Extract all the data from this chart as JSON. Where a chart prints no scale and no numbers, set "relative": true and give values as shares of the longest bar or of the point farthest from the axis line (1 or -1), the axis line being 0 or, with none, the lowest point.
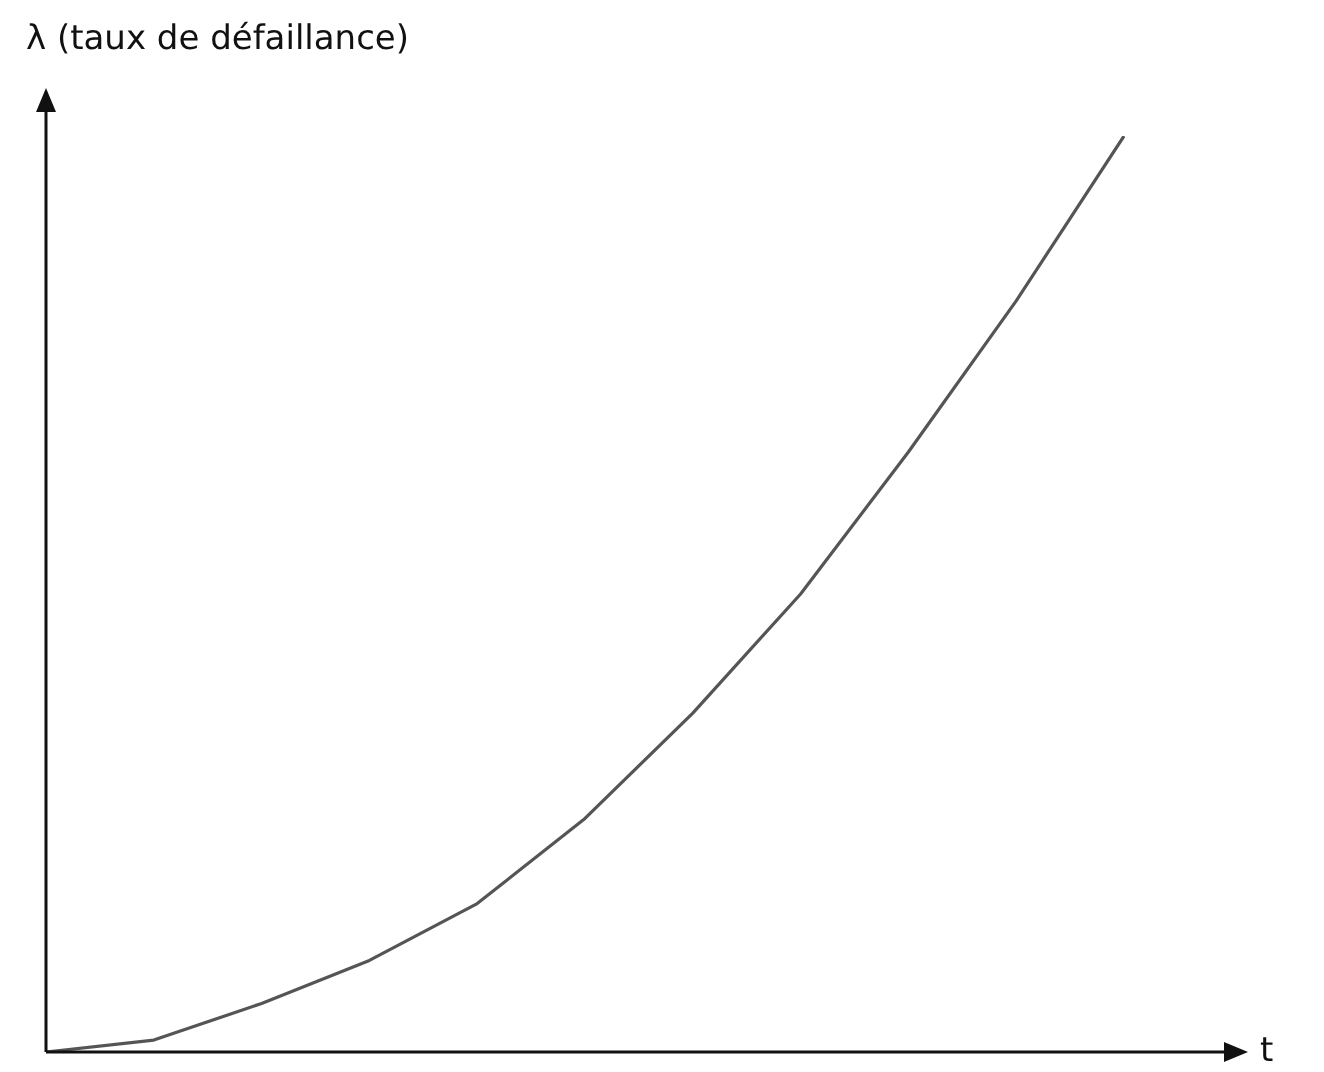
{
  "chart_data": {
    "type": "line",
    "relative": true,
    "ylabel": "λ (taux de défaillance)",
    "xlabel": "t",
    "categories": [
      null,
      null,
      null,
      null,
      null,
      null,
      null,
      null,
      null,
      null,
      null
    ],
    "series": [
      {
        "color": "#555555",
        "values": [
          0,
          0.013,
          0.053,
          0.1,
          0.162,
          0.255,
          0.37,
          0.5,
          0.655,
          0.82,
          1
        ]
      }
    ],
    "marker": "none",
    "legend": false
  }
}
